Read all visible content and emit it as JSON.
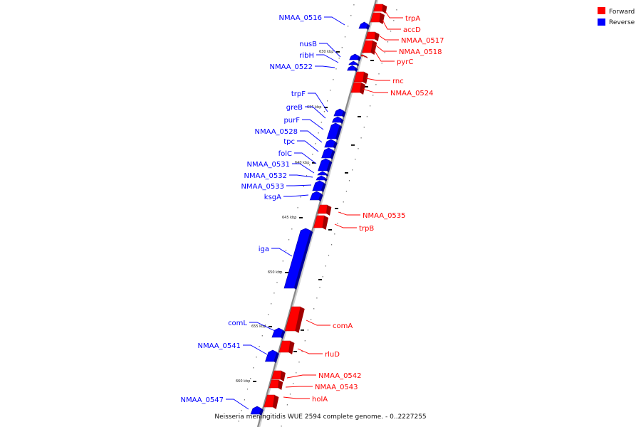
{
  "caption": "Neisseria meningitidis WUE 2594 complete genome. - 0..2227255",
  "legend": [
    {
      "label": "Forward",
      "color": "#ff0000"
    },
    {
      "label": "Reverse",
      "color": "#0000ff"
    }
  ],
  "colors": {
    "forward": "#ff0000",
    "forward_shade": "#a00000",
    "reverse": "#0000ff",
    "reverse_shade": "#00009c",
    "axis": "#888888"
  },
  "ticks": [
    "630 kbp",
    "635 kbp",
    "640 kbp",
    "645 kbp",
    "650 kbp",
    "655 kbp",
    "660 kbp"
  ],
  "forward_genes": [
    "trpA",
    "accD",
    "NMAA_0517",
    "NMAA_0518",
    "pyrC",
    "rnc",
    "NMAA_0524",
    "NMAA_0535",
    "trpB",
    "comA",
    "rluD",
    "NMAA_0542",
    "NMAA_0543",
    "holA"
  ],
  "reverse_genes": [
    "NMAA_0516",
    "nusB",
    "ribH",
    "NMAA_0522",
    "trpF",
    "greB",
    "purF",
    "NMAA_0528",
    "tpc",
    "folC",
    "NMAA_0531",
    "NMAA_0532",
    "NMAA_0533",
    "ksgA",
    "iga",
    "comL",
    "NMAA_0541",
    "NMAA_0547"
  ]
}
